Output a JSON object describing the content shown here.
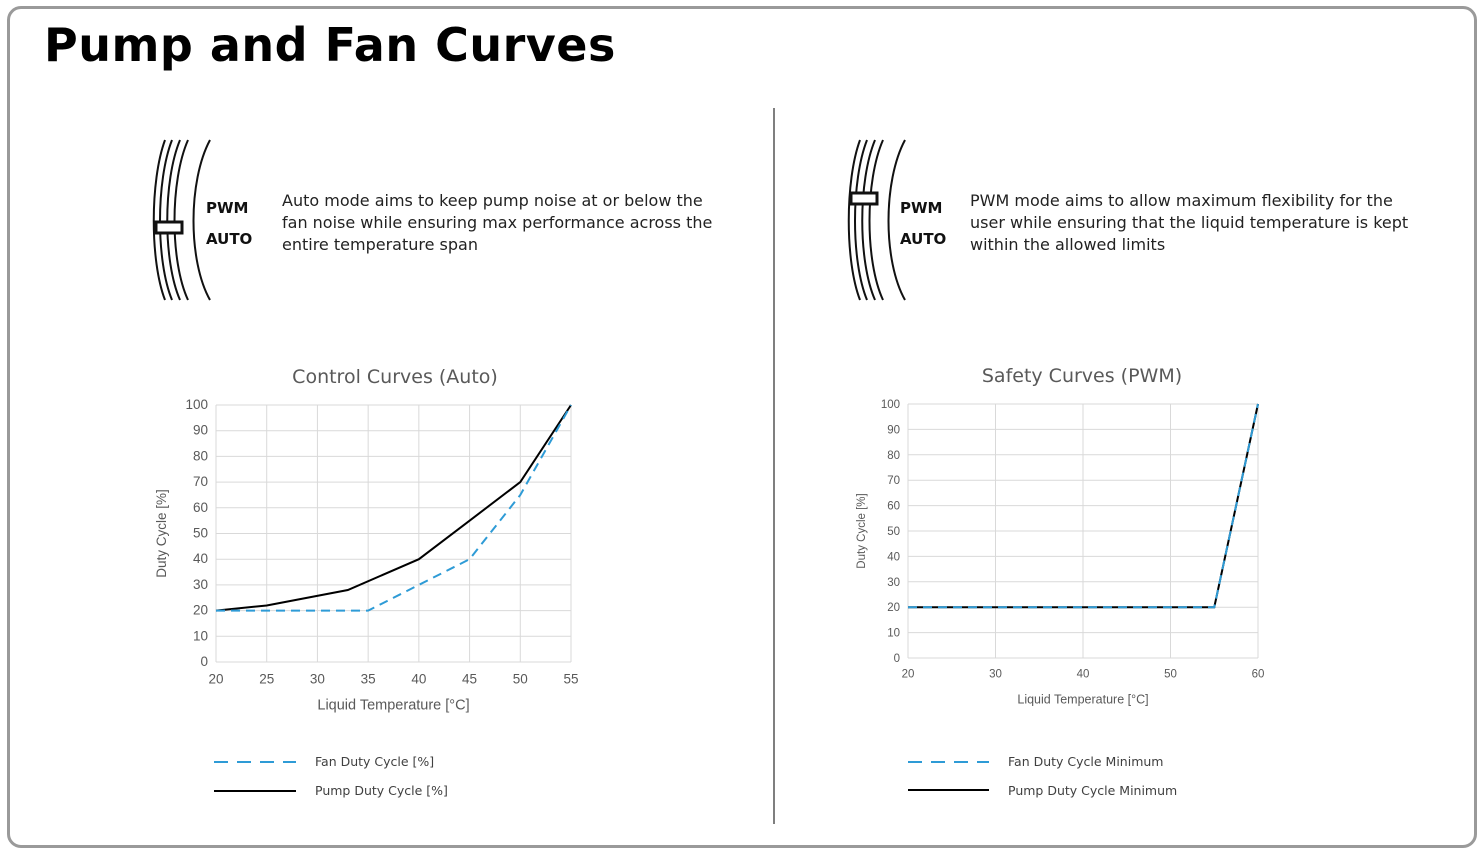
{
  "page": {
    "title": "Pump and Fan Curves"
  },
  "panels": [
    {
      "dial_labels": {
        "top": "PWM",
        "bottom": "AUTO"
      },
      "description": "Auto mode aims to keep pump noise at or below the fan noise while ensuring max performance across the entire temperature span",
      "description_lines": [
        "Auto mode aims to keep pump noise at or below the",
        "fan noise while ensuring max performance across the",
        "entire temperature span"
      ]
    },
    {
      "dial_labels": {
        "top": "PWM",
        "bottom": "AUTO"
      },
      "description": "PWM mode aims to allow maximum flexibility for the user while ensuring that the liquid temperature is kept within the allowed limits",
      "description_lines": [
        "PWM mode aims to allow maximum flexibility for the",
        "user while ensuring that the liquid temperature is kept",
        "within the allowed limits"
      ]
    }
  ],
  "chart_data": [
    {
      "type": "line",
      "title": "Control Curves (Auto)",
      "xlabel": "Liquid Temperature [°C]",
      "ylabel": "Duty Cycle [%]",
      "xlim": [
        20,
        55
      ],
      "ylim": [
        0,
        100
      ],
      "xticks": [
        20,
        25,
        30,
        35,
        40,
        45,
        50,
        55
      ],
      "yticks": [
        0,
        10,
        20,
        30,
        40,
        50,
        60,
        70,
        80,
        90,
        100
      ],
      "grid": true,
      "legend_position": "bottom",
      "series": [
        {
          "name": "Fan Duty Cycle [%]",
          "style": "dashed",
          "color": "#2e9bd6",
          "points": [
            [
              20,
              20
            ],
            [
              22,
              20
            ],
            [
              35,
              20
            ],
            [
              40,
              30
            ],
            [
              45,
              40
            ],
            [
              50,
              65
            ],
            [
              55,
              100
            ]
          ]
        },
        {
          "name": "Pump Duty Cycle [%]",
          "style": "solid",
          "color": "#000000",
          "points": [
            [
              20,
              20
            ],
            [
              25,
              22
            ],
            [
              33,
              28
            ],
            [
              40,
              40
            ],
            [
              45,
              55
            ],
            [
              50,
              70
            ],
            [
              55,
              100
            ]
          ]
        }
      ]
    },
    {
      "type": "line",
      "title": "Safety Curves (PWM)",
      "xlabel": "Liquid Temperature [°C]",
      "ylabel": "Duty Cycle [%]",
      "xlim": [
        20,
        60
      ],
      "ylim": [
        0,
        100
      ],
      "xticks": [
        20,
        30,
        40,
        50,
        60
      ],
      "yticks": [
        0,
        10,
        20,
        30,
        40,
        50,
        60,
        70,
        80,
        90,
        100
      ],
      "grid": true,
      "legend_position": "bottom",
      "series": [
        {
          "name": "Fan Duty Cycle Minimum",
          "style": "dashed",
          "color": "#2e9bd6",
          "points": [
            [
              20,
              20
            ],
            [
              55,
              20
            ],
            [
              60,
              100
            ]
          ]
        },
        {
          "name": "Pump Duty Cycle Minimum",
          "style": "solid",
          "color": "#000000",
          "points": [
            [
              20,
              20
            ],
            [
              55,
              20
            ],
            [
              60,
              100
            ]
          ]
        }
      ]
    }
  ]
}
